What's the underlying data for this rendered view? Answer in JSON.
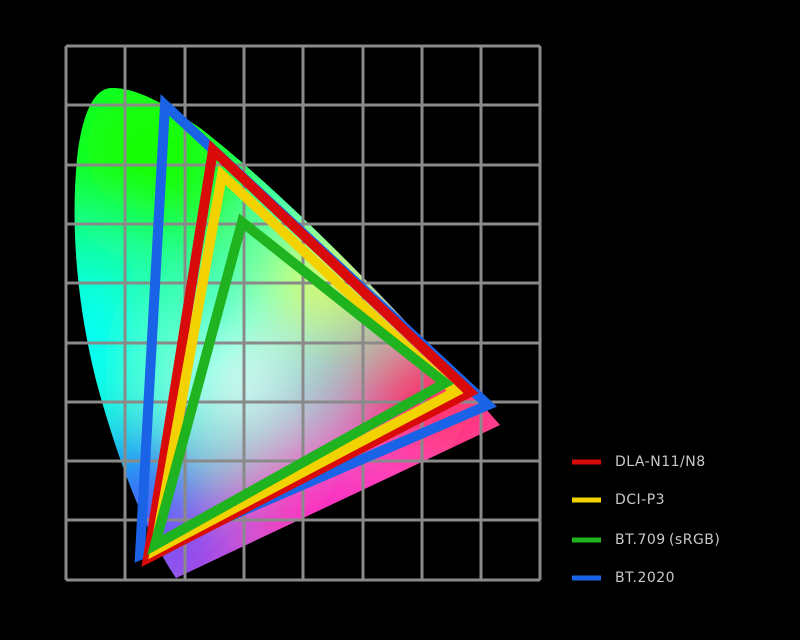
{
  "legend": [
    {
      "label": "DLA-N11/N8",
      "color": "#d80a0a"
    },
    {
      "label": "DCI-P3",
      "color": "#f2d200"
    },
    {
      "label": "BT.709 (sRGB)",
      "color": "#1fb31f"
    },
    {
      "label": "BT.2020",
      "color": "#1a63e6"
    }
  ]
}
